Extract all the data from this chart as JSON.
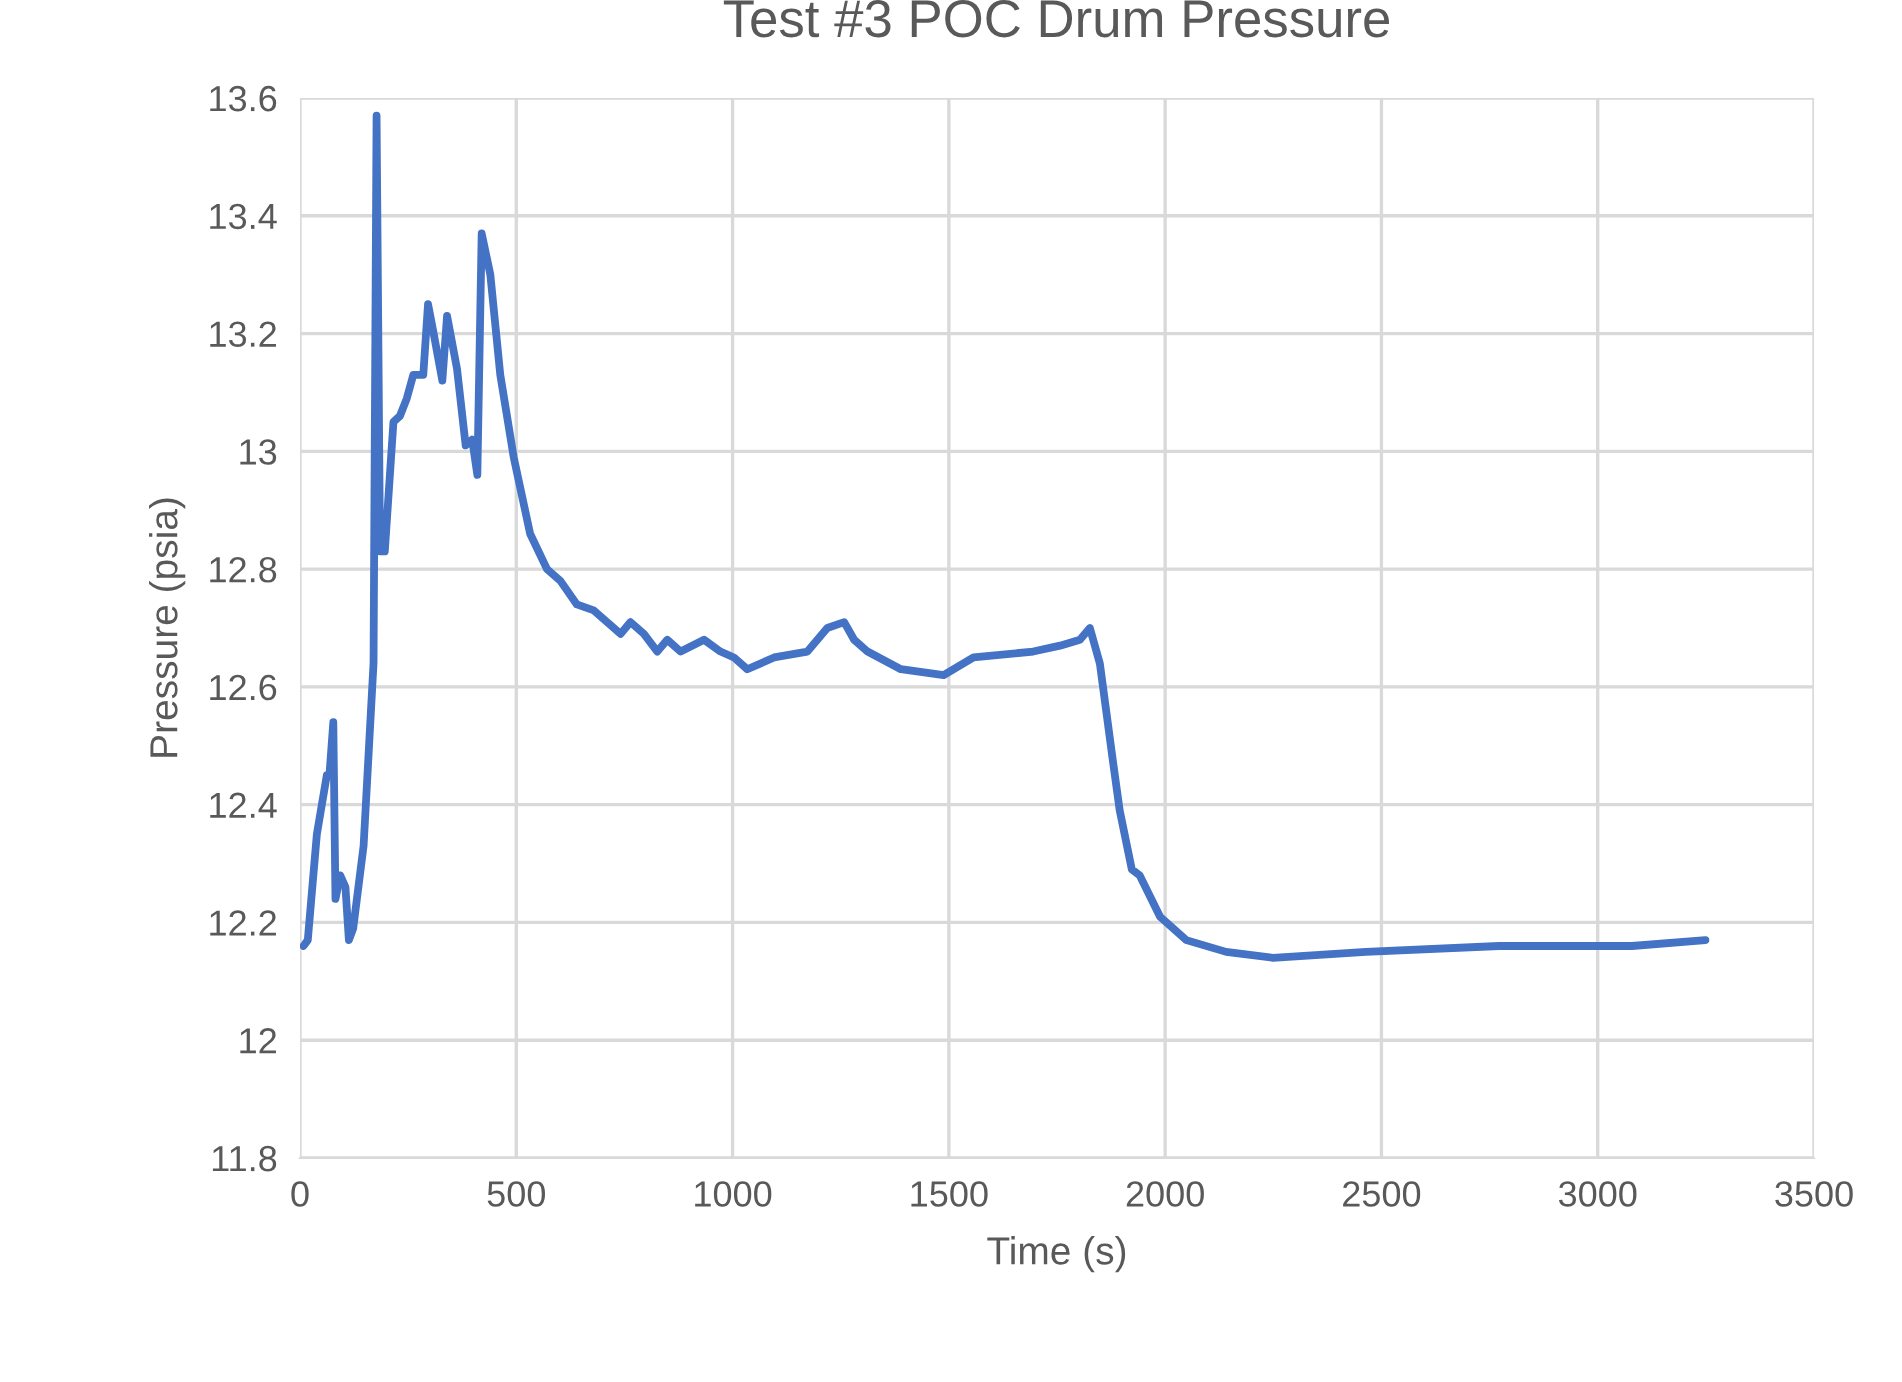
{
  "chart_data": {
    "type": "line",
    "title": "Test #3 POC Drum Pressure",
    "xlabel": "Time (s)",
    "ylabel": "Pressure (psia)",
    "xlim": [
      0,
      3500
    ],
    "xticks": [
      0,
      500,
      1000,
      1500,
      2000,
      2500,
      3000,
      3500
    ],
    "ylim": [
      11.8,
      13.6
    ],
    "yticks": [
      {
        "value": 11.8,
        "label": "11.8"
      },
      {
        "value": 12.0,
        "label": "12"
      },
      {
        "value": 12.2,
        "label": "12.2"
      },
      {
        "value": 12.4,
        "label": "12.4"
      },
      {
        "value": 12.6,
        "label": "12.6"
      },
      {
        "value": 12.8,
        "label": "12.8"
      },
      {
        "value": 13.0,
        "label": "13"
      },
      {
        "value": 13.2,
        "label": "13.2"
      },
      {
        "value": 13.4,
        "label": "13.4"
      },
      {
        "value": 13.6,
        "label": "13.6"
      }
    ],
    "grid": true,
    "marker": "none",
    "line_style": "solid",
    "series": [
      {
        "color": "#4472c4",
        "x": [
          8,
          18,
          39,
          62,
          68,
          77,
          82,
          93,
          105,
          113,
          123,
          147,
          170,
          177,
          185,
          196,
          216,
          231,
          247,
          262,
          285,
          296,
          309,
          329,
          340,
          363,
          383,
          398,
          410,
          420,
          440,
          463,
          494,
          532,
          571,
          602,
          640,
          679,
          710,
          741,
          764,
          795,
          826,
          849,
          880,
          934,
          972,
          1003,
          1034,
          1096,
          1173,
          1219,
          1258,
          1281,
          1312,
          1389,
          1488,
          1557,
          1695,
          1757,
          1803,
          1826,
          1849,
          1880,
          1895,
          1923,
          1941,
          1988,
          2049,
          2141,
          2249,
          2464,
          2772,
          3079,
          3249
        ],
        "values": [
          12.16,
          12.17,
          12.35,
          12.45,
          12.45,
          12.54,
          12.24,
          12.28,
          12.26,
          12.17,
          12.19,
          12.33,
          12.64,
          13.57,
          12.83,
          12.83,
          13.05,
          13.06,
          13.09,
          13.13,
          13.13,
          13.25,
          13.2,
          13.12,
          13.23,
          13.14,
          13.01,
          13.02,
          12.96,
          13.37,
          13.3,
          13.13,
          12.99,
          12.86,
          12.8,
          12.78,
          12.74,
          12.73,
          12.71,
          12.69,
          12.71,
          12.69,
          12.66,
          12.68,
          12.66,
          12.68,
          12.66,
          12.65,
          12.63,
          12.65,
          12.66,
          12.7,
          12.71,
          12.68,
          12.66,
          12.63,
          12.62,
          12.65,
          12.66,
          12.67,
          12.68,
          12.7,
          12.64,
          12.47,
          12.39,
          12.29,
          12.28,
          12.21,
          12.17,
          12.15,
          12.14,
          12.15,
          12.16,
          12.16,
          12.17
        ]
      }
    ]
  }
}
